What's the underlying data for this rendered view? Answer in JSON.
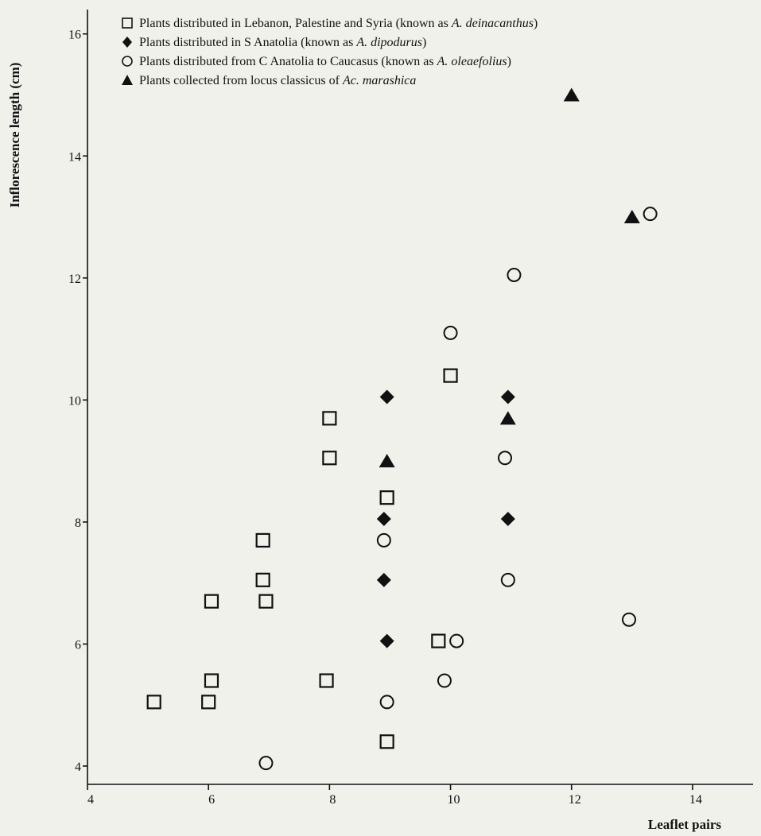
{
  "chart_data": {
    "type": "scatter",
    "xlabel": "Leaflet pairs",
    "ylabel": "Inflorescence length (cm)",
    "xlim": [
      4,
      15
    ],
    "ylim": [
      3.7,
      16.4
    ],
    "xticks": [
      4,
      6,
      8,
      10,
      12,
      14
    ],
    "yticks": [
      4,
      6,
      8,
      10,
      12,
      14,
      16
    ],
    "grid": false,
    "legend_position": "top-left",
    "series": [
      {
        "name_parts": [
          "Plants distributed in Lebanon, Palestine and Syria (known as ",
          "A. deinacanthus",
          ")"
        ],
        "marker": "open-square",
        "points": [
          [
            5.1,
            5.05
          ],
          [
            6.0,
            5.05
          ],
          [
            6.05,
            5.4
          ],
          [
            6.05,
            6.7
          ],
          [
            6.9,
            7.7
          ],
          [
            6.9,
            7.05
          ],
          [
            6.95,
            6.7
          ],
          [
            8.0,
            9.7
          ],
          [
            8.0,
            9.05
          ],
          [
            7.95,
            5.4
          ],
          [
            8.95,
            8.4
          ],
          [
            8.95,
            4.4
          ],
          [
            9.8,
            6.05
          ],
          [
            10.0,
            10.4
          ]
        ]
      },
      {
        "name_parts": [
          "Plants distributed in S Anatolia (known as ",
          "A. dipodurus",
          ")"
        ],
        "marker": "filled-diamond",
        "points": [
          [
            8.95,
            10.05
          ],
          [
            8.9,
            8.05
          ],
          [
            8.9,
            7.05
          ],
          [
            8.95,
            6.05
          ],
          [
            10.95,
            10.05
          ],
          [
            10.95,
            8.05
          ]
        ]
      },
      {
        "name_parts": [
          "Plants distributed from C Anatolia to Caucasus (known as ",
          "A. oleaefolius",
          ")"
        ],
        "marker": "open-circle",
        "points": [
          [
            6.95,
            4.05
          ],
          [
            8.9,
            7.7
          ],
          [
            8.95,
            5.05
          ],
          [
            9.9,
            5.4
          ],
          [
            10.1,
            6.05
          ],
          [
            10.0,
            11.1
          ],
          [
            10.9,
            9.05
          ],
          [
            10.95,
            7.05
          ],
          [
            11.05,
            12.05
          ],
          [
            12.95,
            6.4
          ],
          [
            13.3,
            13.05
          ]
        ]
      },
      {
        "name_parts": [
          "Plants collected from locus classicus of ",
          "Ac. marashica",
          ""
        ],
        "marker": "filled-triangle",
        "points": [
          [
            8.95,
            9.0
          ],
          [
            10.95,
            9.7
          ],
          [
            12.0,
            15.0
          ],
          [
            13.0,
            13.0
          ]
        ]
      }
    ]
  }
}
